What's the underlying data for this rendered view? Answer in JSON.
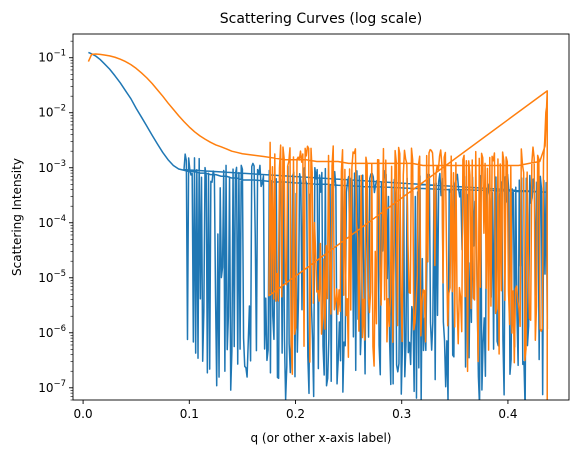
{
  "chart_data": {
    "type": "line",
    "title": "Scattering Curves (log scale)",
    "xlabel": "q (or other x-axis label)",
    "ylabel": "Scattering Intensity",
    "y_scale": "log",
    "xlim": [
      -0.0095,
      0.4575
    ],
    "ylim": [
      6e-08,
      0.27
    ],
    "x_ticks": [
      0.0,
      0.1,
      0.2,
      0.3,
      0.4
    ],
    "x_tick_labels": [
      "0.0",
      "0.1",
      "0.2",
      "0.3",
      "0.4"
    ],
    "y_tick_exponents": [
      -7,
      -6,
      -5,
      -4,
      -3,
      -2,
      -1
    ],
    "y_tick_base": "10",
    "y_tick_minus": "−",
    "grid": false,
    "legend": false,
    "series": [
      {
        "color": "#1f77b4",
        "x": [
          0.005,
          0.008,
          0.012,
          0.016,
          0.02,
          0.025,
          0.03,
          0.035,
          0.04,
          0.045,
          0.05,
          0.055,
          0.06,
          0.065,
          0.07,
          0.075,
          0.08,
          0.085,
          0.09,
          0.095,
          0.1,
          0.105,
          0.11,
          0.115,
          0.12,
          0.125,
          0.13,
          0.135,
          0.14,
          0.145,
          0.15,
          0.16,
          0.17,
          0.18,
          0.19,
          0.2,
          0.21,
          0.22,
          0.23,
          0.24,
          0.25,
          0.26,
          0.27,
          0.28,
          0.29,
          0.3,
          0.31,
          0.32,
          0.33,
          0.34,
          0.35,
          0.36,
          0.37,
          0.38,
          0.39,
          0.4,
          0.41,
          0.42,
          0.43,
          0.435,
          0.437
        ],
        "y": [
          0.125,
          0.118,
          0.107,
          0.093,
          0.078,
          0.062,
          0.047,
          0.035,
          0.025,
          0.018,
          0.012,
          0.0083,
          0.0057,
          0.0039,
          0.0027,
          0.0019,
          0.0014,
          0.0011,
          0.00095,
          0.0009,
          0.00085,
          0.00085,
          0.0008,
          0.0008,
          0.00075,
          0.00075,
          0.0007,
          0.0007,
          0.00065,
          0.00065,
          0.0006,
          0.0006,
          0.00058,
          0.00055,
          0.00055,
          0.00053,
          0.00052,
          0.0005,
          0.0005,
          0.00048,
          0.00047,
          0.00046,
          0.00045,
          0.00045,
          0.00044,
          0.00043,
          0.00042,
          0.00042,
          0.00041,
          0.0004,
          0.0004,
          0.0004,
          0.00039,
          0.00039,
          0.00038,
          0.00038,
          0.00037,
          0.00037,
          0.00036,
          0.00036,
          0.00036
        ],
        "noise_start": 0.095,
        "noise_end": 0.4375,
        "noise_floor": 1e-07
      },
      {
        "color": "#ff7f0e",
        "x": [
          0.005,
          0.008,
          0.012,
          0.016,
          0.02,
          0.025,
          0.03,
          0.035,
          0.04,
          0.045,
          0.05,
          0.055,
          0.06,
          0.065,
          0.07,
          0.075,
          0.08,
          0.085,
          0.09,
          0.095,
          0.1,
          0.105,
          0.11,
          0.115,
          0.12,
          0.125,
          0.13,
          0.135,
          0.14,
          0.145,
          0.15,
          0.16,
          0.17,
          0.18,
          0.19,
          0.2,
          0.21,
          0.22,
          0.23,
          0.24,
          0.25,
          0.26,
          0.27,
          0.28,
          0.29,
          0.3,
          0.31,
          0.32,
          0.33,
          0.34,
          0.35,
          0.36,
          0.37,
          0.38,
          0.39,
          0.4,
          0.41,
          0.42,
          0.43,
          0.435,
          0.437
        ],
        "y": [
          0.085,
          0.115,
          0.117,
          0.115,
          0.112,
          0.108,
          0.102,
          0.094,
          0.085,
          0.075,
          0.064,
          0.053,
          0.043,
          0.034,
          0.026,
          0.02,
          0.015,
          0.0115,
          0.0088,
          0.0069,
          0.0055,
          0.0045,
          0.0038,
          0.0033,
          0.0029,
          0.0026,
          0.0024,
          0.0022,
          0.002,
          0.0019,
          0.0018,
          0.0017,
          0.0016,
          0.0015,
          0.0014,
          0.0014,
          0.0014,
          0.0013,
          0.0013,
          0.0013,
          0.0012,
          0.0012,
          0.0012,
          0.0012,
          0.0012,
          0.0012,
          0.0012,
          0.0011,
          0.0011,
          0.0011,
          0.0011,
          0.0011,
          0.0011,
          0.0011,
          0.0011,
          0.0011,
          0.0011,
          0.0012,
          0.0013,
          0.0025,
          0.025
        ],
        "noise_start": 0.175,
        "noise_end": 0.4375,
        "noise_floor": 8e-07
      }
    ]
  }
}
